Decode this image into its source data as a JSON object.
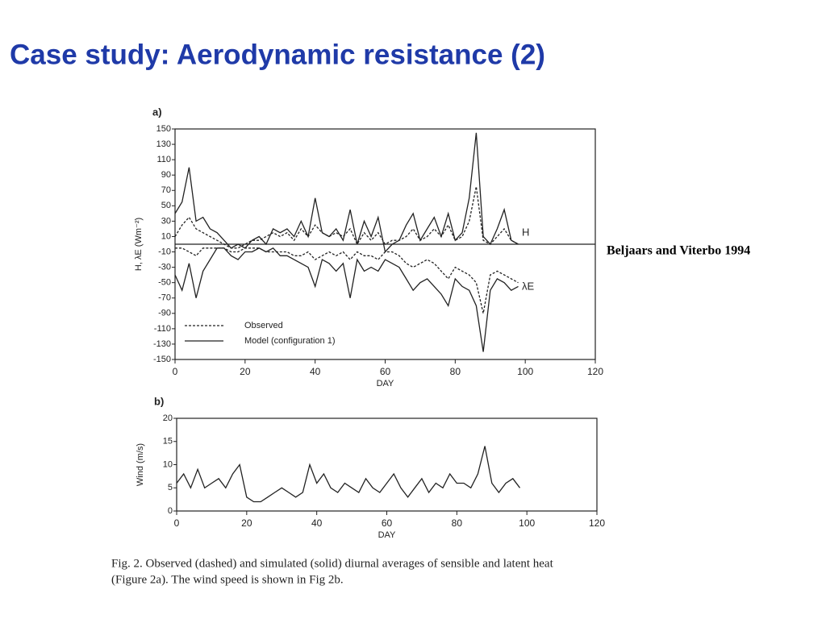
{
  "slide_title": "Case study: Aerodynamic resistance (2)",
  "citation": "Beljaars and Viterbo 1994",
  "caption": [
    "Fig. 2.    Observed (dashed) and simulated (solid) diurnal averages of sensible and latent heat",
    "(Figure 2a). The wind speed is shown in Fig 2b."
  ],
  "chart_data": [
    {
      "type": "line",
      "panel": "a)",
      "xlabel": "DAY",
      "ylabel": "H, λE (Wm⁻²)",
      "xlim": [
        0,
        120
      ],
      "xticks": [
        0,
        20,
        40,
        60,
        80,
        100,
        120
      ],
      "ylim": [
        -150,
        150
      ],
      "yticks": [
        -150,
        -130,
        -110,
        -90,
        -70,
        -50,
        -30,
        -10,
        10,
        30,
        50,
        70,
        90,
        110,
        130,
        150
      ],
      "color": "#222222",
      "legend": [
        "Observed",
        "Model (configuration 1)"
      ],
      "annotations": [
        "H",
        "λE"
      ],
      "x": [
        0,
        2,
        4,
        6,
        8,
        10,
        12,
        14,
        16,
        18,
        20,
        22,
        24,
        26,
        28,
        30,
        32,
        34,
        36,
        38,
        40,
        42,
        44,
        46,
        48,
        50,
        52,
        54,
        56,
        58,
        60,
        62,
        64,
        66,
        68,
        70,
        72,
        74,
        76,
        78,
        80,
        82,
        84,
        86,
        88,
        90,
        92,
        94,
        96,
        98
      ],
      "series": [
        {
          "name": "Observed",
          "dashed": true,
          "H": [
            10,
            25,
            35,
            20,
            15,
            10,
            5,
            0,
            -5,
            -5,
            0,
            5,
            5,
            10,
            15,
            10,
            15,
            5,
            20,
            10,
            25,
            15,
            10,
            15,
            10,
            20,
            0,
            15,
            5,
            15,
            0,
            5,
            5,
            10,
            20,
            5,
            10,
            20,
            10,
            25,
            5,
            10,
            30,
            75,
            5,
            0,
            10,
            20,
            5,
            0
          ],
          "λE": [
            -5,
            -5,
            -10,
            -15,
            -5,
            -5,
            -5,
            -5,
            -10,
            -10,
            -5,
            -5,
            -5,
            -10,
            -10,
            -10,
            -10,
            -15,
            -15,
            -10,
            -20,
            -15,
            -10,
            -15,
            -10,
            -20,
            -10,
            -15,
            -15,
            -20,
            -10,
            -10,
            -15,
            -25,
            -30,
            -25,
            -20,
            -25,
            -35,
            -45,
            -30,
            -35,
            -40,
            -50,
            -90,
            -40,
            -35,
            -40,
            -45,
            -50
          ]
        },
        {
          "name": "Model (configuration 1)",
          "dashed": false,
          "H": [
            40,
            55,
            100,
            30,
            35,
            20,
            15,
            5,
            -5,
            0,
            -5,
            5,
            10,
            0,
            20,
            15,
            20,
            10,
            30,
            10,
            60,
            15,
            10,
            20,
            5,
            45,
            0,
            30,
            10,
            35,
            -10,
            0,
            5,
            25,
            40,
            5,
            20,
            35,
            10,
            40,
            5,
            15,
            60,
            145,
            10,
            0,
            20,
            45,
            5,
            0
          ],
          "λE": [
            -40,
            -60,
            -25,
            -70,
            -35,
            -20,
            -5,
            -5,
            -15,
            -20,
            -10,
            -10,
            -5,
            -10,
            -5,
            -15,
            -15,
            -20,
            -25,
            -30,
            -55,
            -20,
            -25,
            -35,
            -25,
            -70,
            -20,
            -35,
            -30,
            -35,
            -20,
            -25,
            -30,
            -45,
            -60,
            -50,
            -45,
            -55,
            -65,
            -80,
            -45,
            -55,
            -60,
            -80,
            -140,
            -60,
            -45,
            -50,
            -60,
            -55
          ]
        }
      ]
    },
    {
      "type": "line",
      "panel": "b)",
      "xlabel": "DAY",
      "ylabel": "Wind (m/s)",
      "xlim": [
        0,
        120
      ],
      "xticks": [
        0,
        20,
        40,
        60,
        80,
        100,
        120
      ],
      "ylim": [
        0,
        20
      ],
      "yticks": [
        0,
        5,
        10,
        15,
        20
      ],
      "color": "#222222",
      "x": [
        0,
        2,
        4,
        6,
        8,
        10,
        12,
        14,
        16,
        18,
        20,
        22,
        24,
        26,
        28,
        30,
        32,
        34,
        36,
        38,
        40,
        42,
        44,
        46,
        48,
        50,
        52,
        54,
        56,
        58,
        60,
        62,
        64,
        66,
        68,
        70,
        72,
        74,
        76,
        78,
        80,
        82,
        84,
        86,
        88,
        90,
        92,
        94,
        96,
        98
      ],
      "values": [
        6,
        8,
        5,
        9,
        5,
        6,
        7,
        5,
        8,
        10,
        3,
        2,
        2,
        3,
        4,
        5,
        4,
        3,
        4,
        10,
        6,
        8,
        5,
        4,
        6,
        5,
        4,
        7,
        5,
        4,
        6,
        8,
        5,
        3,
        5,
        7,
        4,
        6,
        5,
        8,
        6,
        6,
        5,
        8,
        14,
        6,
        4,
        6,
        7,
        5
      ]
    }
  ]
}
